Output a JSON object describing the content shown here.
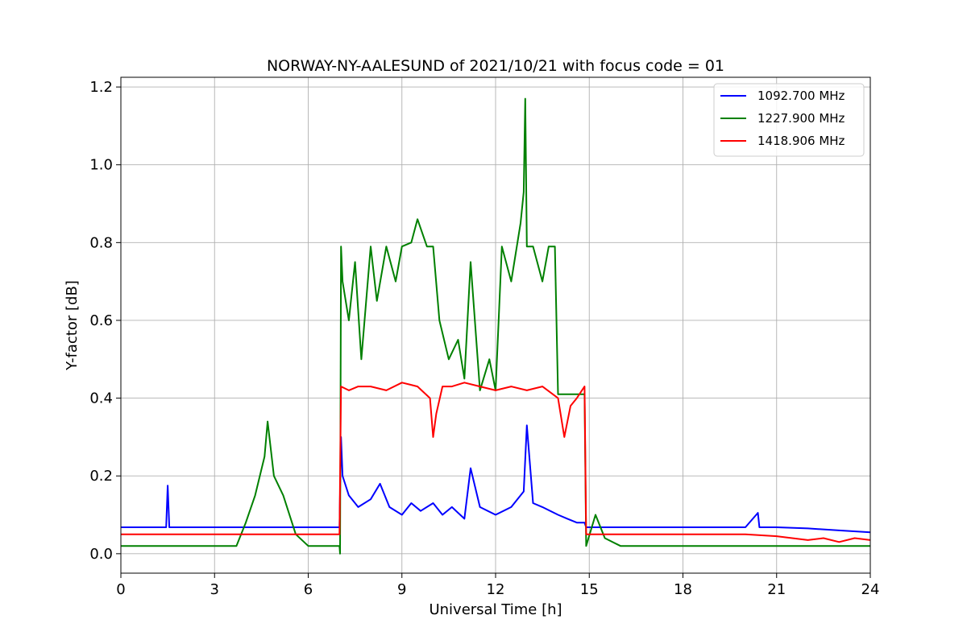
{
  "chart_data": {
    "type": "line",
    "title": "NORWAY-NY-AALESUND of 2021/10/21 with focus code = 01",
    "xlabel": "Universal Time [h]",
    "ylabel": "Y-factor [dB]",
    "xlim": [
      0,
      24
    ],
    "ylim": [
      -0.05,
      1.225
    ],
    "xticks": [
      0,
      3,
      6,
      9,
      12,
      15,
      18,
      21,
      24
    ],
    "yticks": [
      0.0,
      0.2,
      0.4,
      0.6,
      0.8,
      1.0,
      1.2
    ],
    "xtick_labels": [
      "0",
      "3",
      "6",
      "9",
      "12",
      "15",
      "18",
      "21",
      "24"
    ],
    "ytick_labels": [
      "0.0",
      "0.2",
      "0.4",
      "0.6",
      "0.8",
      "1.0",
      "1.2"
    ],
    "grid": true,
    "legend_position": "top-right",
    "series": [
      {
        "name": "1092.700 MHz",
        "color": "#0000ff",
        "x": [
          0,
          1.0,
          1.45,
          1.5,
          1.55,
          2.0,
          3.0,
          4.0,
          5.0,
          6.0,
          7.0,
          7.05,
          7.1,
          7.3,
          7.6,
          8.0,
          8.3,
          8.6,
          9.0,
          9.3,
          9.6,
          10.0,
          10.3,
          10.6,
          11.0,
          11.2,
          11.5,
          12.0,
          12.5,
          12.9,
          13.0,
          13.2,
          13.5,
          14.0,
          14.3,
          14.6,
          14.85,
          14.9,
          15.5,
          18.0,
          20.0,
          20.4,
          20.45,
          21.0,
          22.0,
          23.0,
          24.0
        ],
        "y": [
          0.068,
          0.068,
          0.068,
          0.175,
          0.068,
          0.068,
          0.068,
          0.068,
          0.068,
          0.068,
          0.068,
          0.3,
          0.2,
          0.15,
          0.12,
          0.14,
          0.18,
          0.12,
          0.1,
          0.13,
          0.11,
          0.13,
          0.1,
          0.12,
          0.09,
          0.22,
          0.12,
          0.1,
          0.12,
          0.16,
          0.33,
          0.13,
          0.12,
          0.1,
          0.09,
          0.08,
          0.08,
          0.068,
          0.068,
          0.068,
          0.068,
          0.105,
          0.068,
          0.068,
          0.065,
          0.06,
          0.055
        ]
      },
      {
        "name": "1227.900 MHz",
        "color": "#008000",
        "x": [
          0,
          1.0,
          2.0,
          3.0,
          3.7,
          4.0,
          4.3,
          4.6,
          4.7,
          4.9,
          5.2,
          5.6,
          6.0,
          7.0,
          7.02,
          7.05,
          7.1,
          7.3,
          7.5,
          7.7,
          8.0,
          8.2,
          8.5,
          8.8,
          9.0,
          9.3,
          9.5,
          9.8,
          10.0,
          10.2,
          10.5,
          10.8,
          11.0,
          11.2,
          11.5,
          11.8,
          12.0,
          12.2,
          12.5,
          12.8,
          12.9,
          12.95,
          13.0,
          13.2,
          13.5,
          13.7,
          13.9,
          14.0,
          14.5,
          14.85,
          14.9,
          15.2,
          15.5,
          16.0,
          18.0,
          20.0,
          21.0,
          22.0,
          23.0,
          24.0
        ],
        "y": [
          0.02,
          0.02,
          0.02,
          0.02,
          0.02,
          0.08,
          0.15,
          0.25,
          0.34,
          0.2,
          0.15,
          0.05,
          0.02,
          0.02,
          0.0,
          0.79,
          0.7,
          0.6,
          0.75,
          0.5,
          0.79,
          0.65,
          0.79,
          0.7,
          0.79,
          0.8,
          0.86,
          0.79,
          0.79,
          0.6,
          0.5,
          0.55,
          0.45,
          0.75,
          0.42,
          0.5,
          0.42,
          0.79,
          0.7,
          0.85,
          0.93,
          1.17,
          0.79,
          0.79,
          0.7,
          0.79,
          0.79,
          0.41,
          0.41,
          0.41,
          0.02,
          0.1,
          0.04,
          0.02,
          0.02,
          0.02,
          0.02,
          0.02,
          0.02,
          0.02
        ]
      },
      {
        "name": "1418.906 MHz",
        "color": "#ff0000",
        "x": [
          0,
          1.0,
          2.0,
          3.0,
          4.0,
          5.0,
          6.0,
          7.0,
          7.05,
          7.3,
          7.6,
          8.0,
          8.5,
          9.0,
          9.5,
          9.9,
          10.0,
          10.1,
          10.3,
          10.6,
          11.0,
          11.5,
          12.0,
          12.5,
          13.0,
          13.5,
          14.0,
          14.2,
          14.4,
          14.6,
          14.85,
          14.9,
          15.5,
          18.0,
          20.0,
          21.0,
          21.5,
          22.0,
          22.5,
          23.0,
          23.5,
          24.0
        ],
        "y": [
          0.05,
          0.05,
          0.05,
          0.05,
          0.05,
          0.05,
          0.05,
          0.05,
          0.43,
          0.42,
          0.43,
          0.43,
          0.42,
          0.44,
          0.43,
          0.4,
          0.3,
          0.36,
          0.43,
          0.43,
          0.44,
          0.43,
          0.42,
          0.43,
          0.42,
          0.43,
          0.4,
          0.3,
          0.38,
          0.4,
          0.43,
          0.05,
          0.05,
          0.05,
          0.05,
          0.045,
          0.04,
          0.035,
          0.04,
          0.03,
          0.04,
          0.035
        ]
      }
    ]
  }
}
